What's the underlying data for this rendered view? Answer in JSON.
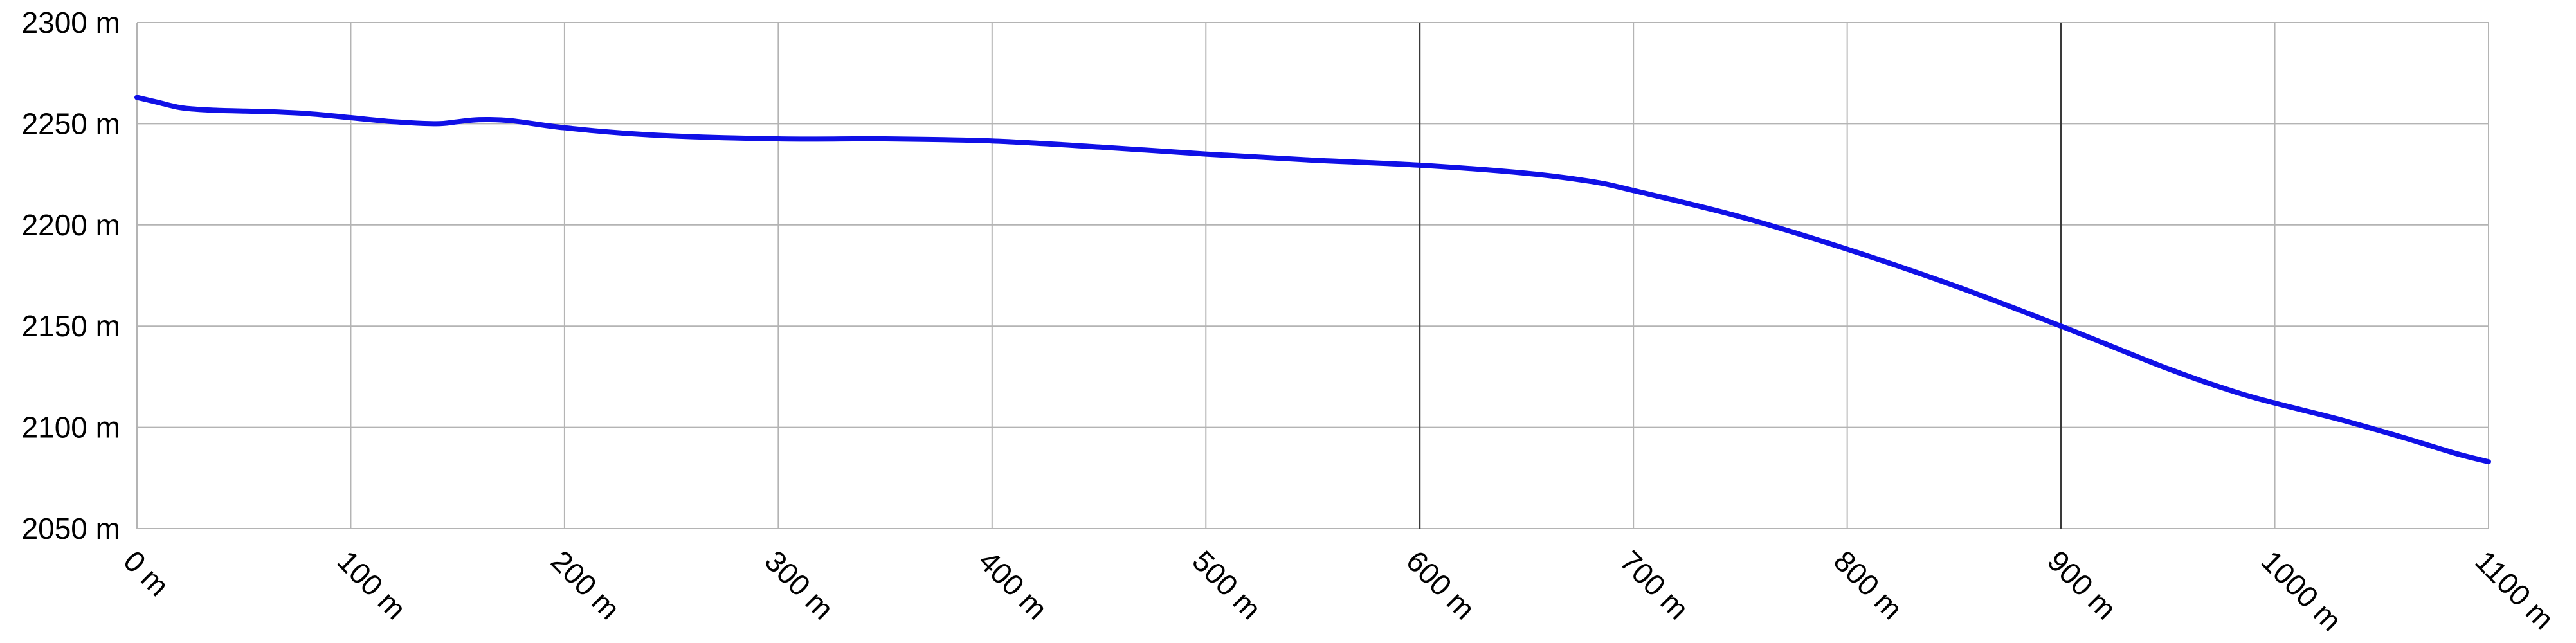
{
  "chart_data": {
    "type": "line",
    "title": "",
    "xlabel": "",
    "ylabel": "",
    "x_unit": "m",
    "y_unit": "m",
    "xlim": [
      0,
      1100
    ],
    "ylim": [
      2050,
      2300
    ],
    "x_ticks": [
      0,
      100,
      200,
      300,
      400,
      500,
      600,
      700,
      800,
      900,
      1000,
      1100
    ],
    "y_ticks": [
      2050,
      2100,
      2150,
      2200,
      2250,
      2300
    ],
    "x_tick_labels": [
      "0 m",
      "100 m",
      "200 m",
      "300 m",
      "400 m",
      "500 m",
      "600 m",
      "700 m",
      "800 m",
      "900 m",
      "1000 m",
      "1100 m"
    ],
    "y_tick_labels": [
      "2050 m",
      "2100 m",
      "2150 m",
      "2200 m",
      "2250 m",
      "2300 m"
    ],
    "emphasized_x_gridlines": [
      600,
      900
    ],
    "grid": true,
    "legend": "none",
    "series": [
      {
        "color": "#1010e6",
        "x": [
          0,
          10,
          20,
          30,
          40,
          60,
          80,
          100,
          120,
          140,
          150,
          160,
          175,
          200,
          240,
          300,
          350,
          400,
          450,
          500,
          550,
          600,
          650,
          680,
          700,
          750,
          800,
          850,
          900,
          950,
          980,
          1000,
          1030,
          1060,
          1085,
          1100
        ],
        "y": [
          2263,
          2260.5,
          2258,
          2257,
          2256.5,
          2256,
          2255,
          2253,
          2251,
          2250,
          2251,
          2252,
          2251.5,
          2248,
          2244.5,
          2242.5,
          2242.5,
          2241.5,
          2238.5,
          2235,
          2232,
          2229.5,
          2225.5,
          2221.5,
          2217,
          2204,
          2188,
          2170,
          2150,
          2129,
          2118,
          2112,
          2104,
          2095,
          2087,
          2083
        ]
      }
    ]
  }
}
